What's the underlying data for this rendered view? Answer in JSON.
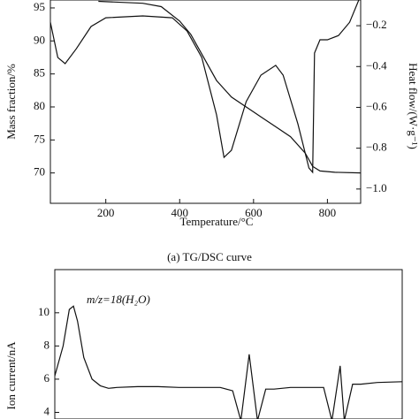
{
  "chart_data": [
    {
      "type": "line",
      "caption": "(a) TG/DSC curve",
      "x_label": "Temperature/°C",
      "y_label": "Mass fraction/%",
      "y2_label": "Heat flow/(W·g⁻¹)",
      "xlim": [
        50,
        890
      ],
      "xticks": [
        200,
        400,
        600,
        800
      ],
      "ylim": [
        65.4,
        96.2
      ],
      "yticks": [
        70,
        75,
        80,
        85,
        90,
        95
      ],
      "y2lim": [
        -1.07,
        -0.074
      ],
      "y2ticks": [
        {
          "value": -0.2,
          "label": "−0.2"
        },
        {
          "value": -0.4,
          "label": "−0.4"
        },
        {
          "value": -0.6,
          "label": "−0.6"
        },
        {
          "value": -0.8,
          "label": "−0.8"
        },
        {
          "value": -1.0,
          "label": "−1.0"
        }
      ],
      "series": [
        {
          "color": "#111111",
          "x": [
            180,
            300,
            350,
            400,
            430,
            460,
            500,
            540,
            580,
            620,
            660,
            700,
            740,
            760,
            780,
            820,
            890
          ],
          "values": [
            96,
            95.7,
            95.2,
            93,
            91,
            88,
            84,
            81.5,
            80,
            78.5,
            77,
            75.5,
            73,
            71,
            70.3,
            70.1,
            70
          ]
        },
        {
          "color": "#111111",
          "axis": "y2",
          "x": [
            50,
            70,
            90,
            120,
            160,
            200,
            300,
            380,
            420,
            460,
            500,
            520,
            540,
            580,
            620,
            660,
            680,
            720,
            750,
            760,
            765,
            780,
            800,
            830,
            860,
            885
          ],
          "values": [
            -0.183,
            -0.356,
            -0.386,
            -0.313,
            -0.204,
            -0.161,
            -0.152,
            -0.161,
            -0.226,
            -0.356,
            -0.637,
            -0.845,
            -0.81,
            -0.572,
            -0.442,
            -0.394,
            -0.442,
            -0.681,
            -0.897,
            -0.918,
            -0.334,
            -0.269,
            -0.269,
            -0.248,
            -0.183,
            -0.074
          ]
        }
      ]
    },
    {
      "type": "line",
      "y_label": "Ion current/nA",
      "annotation": "m/z=18(H₂O)",
      "xlim": [
        50,
        890
      ],
      "ylim": [
        3.6,
        12.6
      ],
      "yticks": [
        4,
        6,
        8,
        10
      ],
      "series": [
        {
          "color": "#111111",
          "x": [
            50,
            70,
            85,
            95,
            105,
            120,
            140,
            160,
            180,
            200,
            250,
            300,
            350,
            400,
            450,
            480,
            500,
            520,
            540,
            560,
            580,
            620,
            650,
            700,
            720,
            740,
            750,
            770,
            790,
            830,
            890
          ],
          "values": [
            6.2,
            8,
            10.2,
            10.4,
            9.5,
            7.3,
            6,
            5.6,
            5.45,
            5.5,
            5.55,
            5.55,
            5.5,
            5.5,
            5.5,
            5.3,
            3.5,
            7.5,
            3.5,
            5.4,
            5.4,
            5.5,
            5.5,
            5.5,
            3.5,
            6.8,
            3.5,
            5.7,
            5.7,
            5.8,
            5.85
          ]
        }
      ]
    }
  ]
}
